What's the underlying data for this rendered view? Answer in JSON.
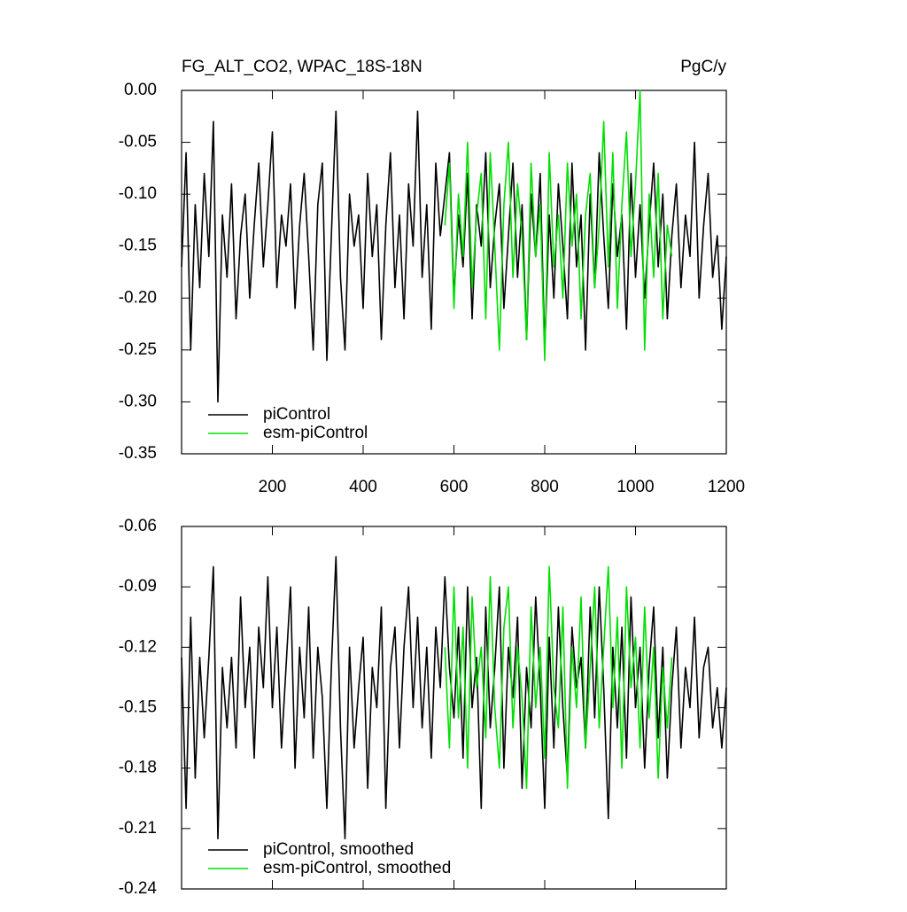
{
  "chart_data": [
    {
      "type": "line",
      "title": "FG_ALT_CO2, WPAC_18S-18N",
      "units": "PgC/y",
      "x": [
        0,
        10,
        20,
        30,
        40,
        50,
        60,
        70,
        80,
        90,
        100,
        110,
        120,
        130,
        140,
        150,
        160,
        170,
        180,
        190,
        200,
        210,
        220,
        230,
        240,
        250,
        260,
        270,
        280,
        290,
        300,
        310,
        320,
        330,
        340,
        350,
        360,
        370,
        380,
        390,
        400,
        410,
        420,
        430,
        440,
        450,
        460,
        470,
        480,
        490,
        500,
        510,
        520,
        530,
        540,
        550,
        560,
        570,
        580,
        590,
        600,
        610,
        620,
        630,
        640,
        650,
        660,
        670,
        680,
        690,
        700,
        710,
        720,
        730,
        740,
        750,
        760,
        770,
        780,
        790,
        800,
        810,
        820,
        830,
        840,
        850,
        860,
        870,
        880,
        890,
        900,
        910,
        920,
        930,
        940,
        950,
        960,
        970,
        980,
        990,
        1000,
        1010,
        1020,
        1030,
        1040,
        1050,
        1060,
        1070,
        1080,
        1090,
        1100,
        1110,
        1120,
        1130,
        1140,
        1150,
        1160,
        1170,
        1180,
        1190,
        1200
      ],
      "series": [
        {
          "name": "piControl",
          "color": "#000000",
          "values": [
            -0.17,
            -0.06,
            -0.25,
            -0.11,
            -0.19,
            -0.08,
            -0.16,
            -0.03,
            -0.3,
            -0.12,
            -0.18,
            -0.09,
            -0.22,
            -0.14,
            -0.1,
            -0.2,
            -0.13,
            -0.07,
            -0.17,
            -0.11,
            -0.04,
            -0.19,
            -0.12,
            -0.15,
            -0.09,
            -0.21,
            -0.13,
            -0.08,
            -0.16,
            -0.25,
            -0.11,
            -0.07,
            -0.26,
            -0.14,
            -0.02,
            -0.18,
            -0.25,
            -0.1,
            -0.15,
            -0.12,
            -0.21,
            -0.08,
            -0.16,
            -0.11,
            -0.24,
            -0.13,
            -0.06,
            -0.19,
            -0.12,
            -0.22,
            -0.09,
            -0.15,
            -0.02,
            -0.18,
            -0.11,
            -0.23,
            -0.07,
            -0.14,
            -0.1,
            -0.06,
            -0.2,
            -0.12,
            -0.17,
            -0.08,
            -0.22,
            -0.11,
            -0.15,
            -0.06,
            -0.19,
            -0.13,
            -0.09,
            -0.21,
            -0.14,
            -0.07,
            -0.18,
            -0.11,
            -0.24,
            -0.1,
            -0.16,
            -0.08,
            -0.25,
            -0.12,
            -0.2,
            -0.09,
            -0.15,
            -0.22,
            -0.07,
            -0.17,
            -0.12,
            -0.25,
            -0.1,
            -0.19,
            -0.06,
            -0.14,
            -0.21,
            -0.09,
            -0.16,
            -0.12,
            -0.23,
            -0.08,
            -0.18,
            -0.11,
            -0.2,
            -0.13,
            -0.07,
            -0.17,
            -0.1,
            -0.22,
            -0.14,
            -0.09,
            -0.19,
            -0.12,
            -0.16,
            -0.05,
            -0.2,
            -0.13,
            -0.08,
            -0.18,
            -0.14,
            -0.23,
            -0.16
          ]
        },
        {
          "name": "esm-piControl",
          "color": "#00e000",
          "values": [
            null,
            null,
            null,
            null,
            null,
            null,
            null,
            null,
            null,
            null,
            null,
            null,
            null,
            null,
            null,
            null,
            null,
            null,
            null,
            null,
            null,
            null,
            null,
            null,
            null,
            null,
            null,
            null,
            null,
            null,
            null,
            null,
            null,
            null,
            null,
            null,
            null,
            null,
            null,
            null,
            null,
            null,
            null,
            null,
            null,
            null,
            null,
            null,
            null,
            null,
            null,
            null,
            null,
            null,
            null,
            null,
            null,
            null,
            -0.13,
            -0.07,
            -0.21,
            -0.1,
            -0.16,
            -0.05,
            -0.19,
            -0.12,
            -0.08,
            -0.22,
            -0.06,
            -0.15,
            -0.25,
            -0.11,
            -0.05,
            -0.18,
            -0.09,
            -0.14,
            -0.24,
            -0.07,
            -0.16,
            -0.11,
            -0.26,
            -0.06,
            -0.17,
            -0.12,
            -0.2,
            -0.07,
            -0.15,
            -0.1,
            -0.22,
            -0.12,
            -0.08,
            -0.19,
            -0.13,
            -0.03,
            -0.17,
            -0.06,
            -0.21,
            -0.11,
            -0.04,
            -0.16,
            -0.09,
            0.0,
            -0.25,
            -0.1,
            -0.18,
            -0.08,
            -0.22,
            -0.13,
            -0.16,
            null,
            null,
            null,
            null,
            null,
            null,
            null,
            null,
            null,
            null,
            null,
            null
          ]
        }
      ],
      "xlim": [
        0,
        1200
      ],
      "xticks": [
        200,
        400,
        600,
        800,
        1000,
        1200
      ],
      "ylim": [
        -0.35,
        0.0
      ],
      "yticks": [
        -0.35,
        {
          "value": -0.3,
          "label": "-0.30"
        },
        -0.25,
        {
          "value": -0.2,
          "label": "-0.20"
        },
        -0.15,
        {
          "value": -0.1,
          "label": "-0.10"
        },
        -0.05,
        {
          "value": 0.0,
          "label": "0.00"
        }
      ],
      "legend": "lower left"
    },
    {
      "type": "line",
      "x": [
        0,
        10,
        20,
        30,
        40,
        50,
        60,
        70,
        80,
        90,
        100,
        110,
        120,
        130,
        140,
        150,
        160,
        170,
        180,
        190,
        200,
        210,
        220,
        230,
        240,
        250,
        260,
        270,
        280,
        290,
        300,
        310,
        320,
        330,
        340,
        350,
        360,
        370,
        380,
        390,
        400,
        410,
        420,
        430,
        440,
        450,
        460,
        470,
        480,
        490,
        500,
        510,
        520,
        530,
        540,
        550,
        560,
        570,
        580,
        590,
        600,
        610,
        620,
        630,
        640,
        650,
        660,
        670,
        680,
        690,
        700,
        710,
        720,
        730,
        740,
        750,
        760,
        770,
        780,
        790,
        800,
        810,
        820,
        830,
        840,
        850,
        860,
        870,
        880,
        890,
        900,
        910,
        920,
        930,
        940,
        950,
        960,
        970,
        980,
        990,
        1000,
        1010,
        1020,
        1030,
        1040,
        1050,
        1060,
        1070,
        1080,
        1090,
        1100,
        1110,
        1120,
        1130,
        1140,
        1150,
        1160,
        1170,
        1180,
        1190,
        1200
      ],
      "series": [
        {
          "name": "piControl, smoothed",
          "color": "#000000",
          "values": [
            -0.125,
            -0.2,
            -0.105,
            -0.185,
            -0.125,
            -0.165,
            -0.125,
            -0.08,
            -0.215,
            -0.13,
            -0.16,
            -0.125,
            -0.17,
            -0.095,
            -0.15,
            -0.12,
            -0.175,
            -0.11,
            -0.14,
            -0.085,
            -0.15,
            -0.11,
            -0.17,
            -0.13,
            -0.09,
            -0.18,
            -0.12,
            -0.155,
            -0.1,
            -0.175,
            -0.12,
            -0.145,
            -0.2,
            -0.13,
            -0.075,
            -0.16,
            -0.215,
            -0.12,
            -0.17,
            -0.14,
            -0.115,
            -0.19,
            -0.13,
            -0.15,
            -0.1,
            -0.2,
            -0.13,
            -0.11,
            -0.17,
            -0.12,
            -0.09,
            -0.15,
            -0.105,
            -0.16,
            -0.12,
            -0.175,
            -0.11,
            -0.14,
            -0.085,
            -0.13,
            -0.155,
            -0.11,
            -0.175,
            -0.09,
            -0.15,
            -0.125,
            -0.2,
            -0.1,
            -0.16,
            -0.13,
            -0.09,
            -0.18,
            -0.12,
            -0.145,
            -0.105,
            -0.19,
            -0.13,
            -0.16,
            -0.095,
            -0.14,
            -0.2,
            -0.115,
            -0.17,
            -0.1,
            -0.15,
            -0.185,
            -0.11,
            -0.14,
            -0.125,
            -0.17,
            -0.1,
            -0.155,
            -0.09,
            -0.14,
            -0.205,
            -0.12,
            -0.16,
            -0.11,
            -0.175,
            -0.095,
            -0.15,
            -0.12,
            -0.18,
            -0.13,
            -0.1,
            -0.165,
            -0.12,
            -0.185,
            -0.14,
            -0.11,
            -0.17,
            -0.13,
            -0.15,
            -0.105,
            -0.165,
            -0.13,
            -0.12,
            -0.16,
            -0.14,
            -0.17,
            -0.14
          ]
        },
        {
          "name": "esm-piControl, smoothed",
          "color": "#00e000",
          "values": [
            null,
            null,
            null,
            null,
            null,
            null,
            null,
            null,
            null,
            null,
            null,
            null,
            null,
            null,
            null,
            null,
            null,
            null,
            null,
            null,
            null,
            null,
            null,
            null,
            null,
            null,
            null,
            null,
            null,
            null,
            null,
            null,
            null,
            null,
            null,
            null,
            null,
            null,
            null,
            null,
            null,
            null,
            null,
            null,
            null,
            null,
            null,
            null,
            null,
            null,
            null,
            null,
            null,
            null,
            null,
            null,
            null,
            null,
            -0.12,
            -0.17,
            -0.09,
            -0.155,
            -0.11,
            -0.18,
            -0.095,
            -0.14,
            -0.12,
            -0.165,
            -0.085,
            -0.15,
            -0.18,
            -0.11,
            -0.09,
            -0.16,
            -0.12,
            -0.145,
            -0.19,
            -0.1,
            -0.15,
            -0.12,
            -0.175,
            -0.08,
            -0.14,
            -0.16,
            -0.1,
            -0.19,
            -0.12,
            -0.15,
            -0.095,
            -0.17,
            -0.13,
            -0.09,
            -0.16,
            -0.12,
            -0.08,
            -0.15,
            -0.105,
            -0.18,
            -0.09,
            -0.14,
            -0.115,
            -0.17,
            -0.1,
            -0.155,
            -0.12,
            -0.185,
            -0.13,
            -0.16,
            -0.125,
            null,
            null,
            null,
            null,
            null,
            null,
            null,
            null,
            null,
            null,
            null,
            null
          ]
        }
      ],
      "xlim": [
        0,
        1200
      ],
      "xticks": [
        200,
        400,
        600,
        800,
        1000,
        1200
      ],
      "ylim": [
        -0.24,
        -0.06
      ],
      "yticks": [
        -0.24,
        -0.21,
        -0.18,
        -0.15,
        -0.12,
        -0.09,
        -0.06
      ],
      "legend": "lower left"
    }
  ]
}
